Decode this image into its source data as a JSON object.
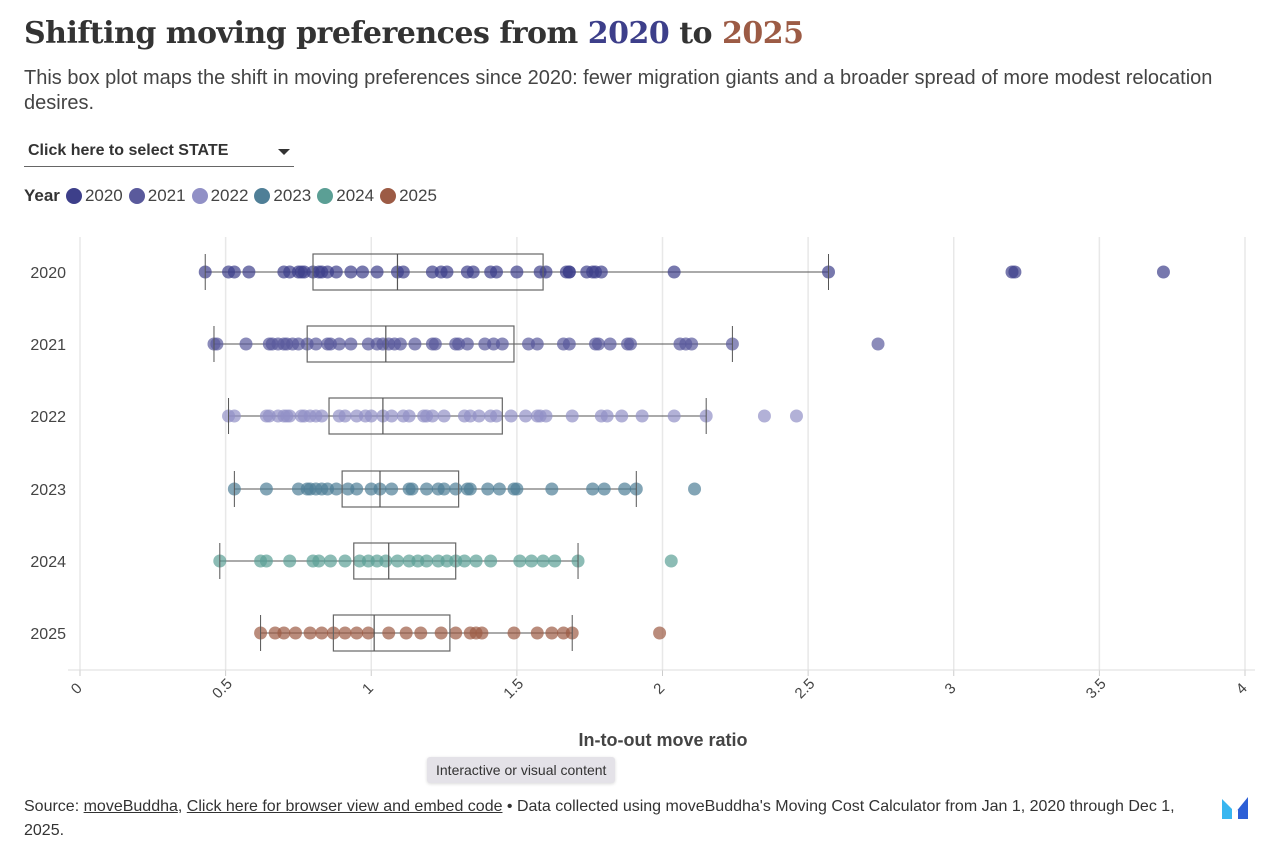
{
  "header": {
    "title_prefix": "Shifting moving preferences from ",
    "title_year1": "2020",
    "title_mid": " to ",
    "title_year2": "2025",
    "subtitle": "This box plot maps the shift in moving preferences since 2020: fewer migration giants and a broader spread of more modest relocation desires."
  },
  "controls": {
    "state_dropdown": "Click here to select STATE"
  },
  "legend": {
    "title": "Year",
    "items": [
      {
        "label": "2020",
        "color": "#3d3f8a"
      },
      {
        "label": "2021",
        "color": "#5a5a9c"
      },
      {
        "label": "2022",
        "color": "#9190c6"
      },
      {
        "label": "2023",
        "color": "#4f7f97"
      },
      {
        "label": "2024",
        "color": "#5b9f95"
      },
      {
        "label": "2025",
        "color": "#9c5b45"
      }
    ]
  },
  "tooltip": "Interactive or visual content",
  "footer": {
    "source_prefix": "Source: ",
    "source_link": "moveBuddha",
    "separator": ", ",
    "embed_link": "Click here for browser view and embed code",
    "note": " • Data collected using moveBuddha's Moving Cost Calculator from Jan 1, 2020 through Dec 1, 2025."
  },
  "chart_data": {
    "type": "boxplot",
    "orientation": "horizontal",
    "xlabel": "In-to-out move ratio",
    "ylabel": "",
    "xlim": [
      0,
      4
    ],
    "xticks": [
      "0",
      "0.5",
      "1",
      "1.5",
      "2",
      "2.5",
      "3",
      "3.5",
      "4"
    ],
    "grid": true,
    "categories": [
      "2020",
      "2021",
      "2022",
      "2023",
      "2024",
      "2025"
    ],
    "series": [
      {
        "name": "2020",
        "color": "#3d3f8a",
        "box": {
          "min": 0.43,
          "q1": 0.8,
          "median": 1.09,
          "q3": 1.59,
          "max": 2.57
        },
        "points": [
          0.43,
          0.51,
          0.53,
          0.58,
          0.7,
          0.72,
          0.75,
          0.76,
          0.77,
          0.8,
          0.82,
          0.83,
          0.85,
          0.88,
          0.93,
          0.97,
          1.02,
          1.09,
          1.11,
          1.21,
          1.24,
          1.26,
          1.33,
          1.35,
          1.41,
          1.43,
          1.5,
          1.58,
          1.6,
          1.67,
          1.68,
          1.68,
          1.74,
          1.76,
          1.77,
          1.79,
          2.04,
          2.57,
          3.2,
          3.21,
          3.72
        ]
      },
      {
        "name": "2021",
        "color": "#5a5a9c",
        "box": {
          "min": 0.46,
          "q1": 0.78,
          "median": 1.05,
          "q3": 1.49,
          "max": 2.24
        },
        "points": [
          0.46,
          0.47,
          0.57,
          0.65,
          0.66,
          0.68,
          0.7,
          0.71,
          0.73,
          0.75,
          0.78,
          0.81,
          0.85,
          0.86,
          0.89,
          0.93,
          0.99,
          1.02,
          1.04,
          1.06,
          1.08,
          1.1,
          1.15,
          1.21,
          1.22,
          1.29,
          1.3,
          1.33,
          1.39,
          1.42,
          1.45,
          1.54,
          1.57,
          1.66,
          1.68,
          1.77,
          1.78,
          1.82,
          1.88,
          1.89,
          2.06,
          2.08,
          2.1,
          2.24,
          2.74
        ]
      },
      {
        "name": "2022",
        "color": "#9190c6",
        "box": {
          "min": 0.51,
          "q1": 0.855,
          "median": 1.04,
          "q3": 1.45,
          "max": 2.15
        },
        "points": [
          0.51,
          0.53,
          0.64,
          0.65,
          0.68,
          0.7,
          0.71,
          0.72,
          0.76,
          0.77,
          0.79,
          0.81,
          0.83,
          0.89,
          0.91,
          0.95,
          0.98,
          1.0,
          1.04,
          1.07,
          1.11,
          1.13,
          1.18,
          1.19,
          1.21,
          1.25,
          1.32,
          1.34,
          1.37,
          1.41,
          1.43,
          1.48,
          1.53,
          1.57,
          1.58,
          1.6,
          1.69,
          1.79,
          1.81,
          1.86,
          1.93,
          2.04,
          2.15,
          2.35,
          2.46
        ]
      },
      {
        "name": "2023",
        "color": "#4f7f97",
        "box": {
          "min": 0.53,
          "q1": 0.9,
          "median": 1.03,
          "q3": 1.3,
          "max": 1.91
        },
        "points": [
          0.53,
          0.64,
          0.75,
          0.78,
          0.79,
          0.81,
          0.83,
          0.85,
          0.88,
          0.92,
          0.95,
          1.0,
          1.03,
          1.07,
          1.13,
          1.14,
          1.19,
          1.23,
          1.25,
          1.29,
          1.33,
          1.34,
          1.4,
          1.44,
          1.49,
          1.5,
          1.62,
          1.76,
          1.8,
          1.87,
          1.91,
          2.11
        ]
      },
      {
        "name": "2024",
        "color": "#5b9f95",
        "box": {
          "min": 0.48,
          "q1": 0.94,
          "median": 1.06,
          "q3": 1.29,
          "max": 1.71
        },
        "points": [
          0.48,
          0.62,
          0.64,
          0.72,
          0.8,
          0.82,
          0.86,
          0.91,
          0.96,
          0.99,
          1.02,
          1.05,
          1.09,
          1.13,
          1.16,
          1.19,
          1.23,
          1.26,
          1.29,
          1.32,
          1.36,
          1.41,
          1.51,
          1.55,
          1.59,
          1.63,
          1.71,
          2.03
        ]
      },
      {
        "name": "2025",
        "color": "#9c5b45",
        "box": {
          "min": 0.62,
          "q1": 0.87,
          "median": 1.01,
          "q3": 1.27,
          "max": 1.69
        },
        "points": [
          0.62,
          0.67,
          0.7,
          0.74,
          0.79,
          0.83,
          0.87,
          0.91,
          0.95,
          0.99,
          1.06,
          1.12,
          1.17,
          1.24,
          1.29,
          1.34,
          1.36,
          1.38,
          1.49,
          1.57,
          1.62,
          1.66,
          1.69,
          1.99
        ]
      }
    ]
  }
}
